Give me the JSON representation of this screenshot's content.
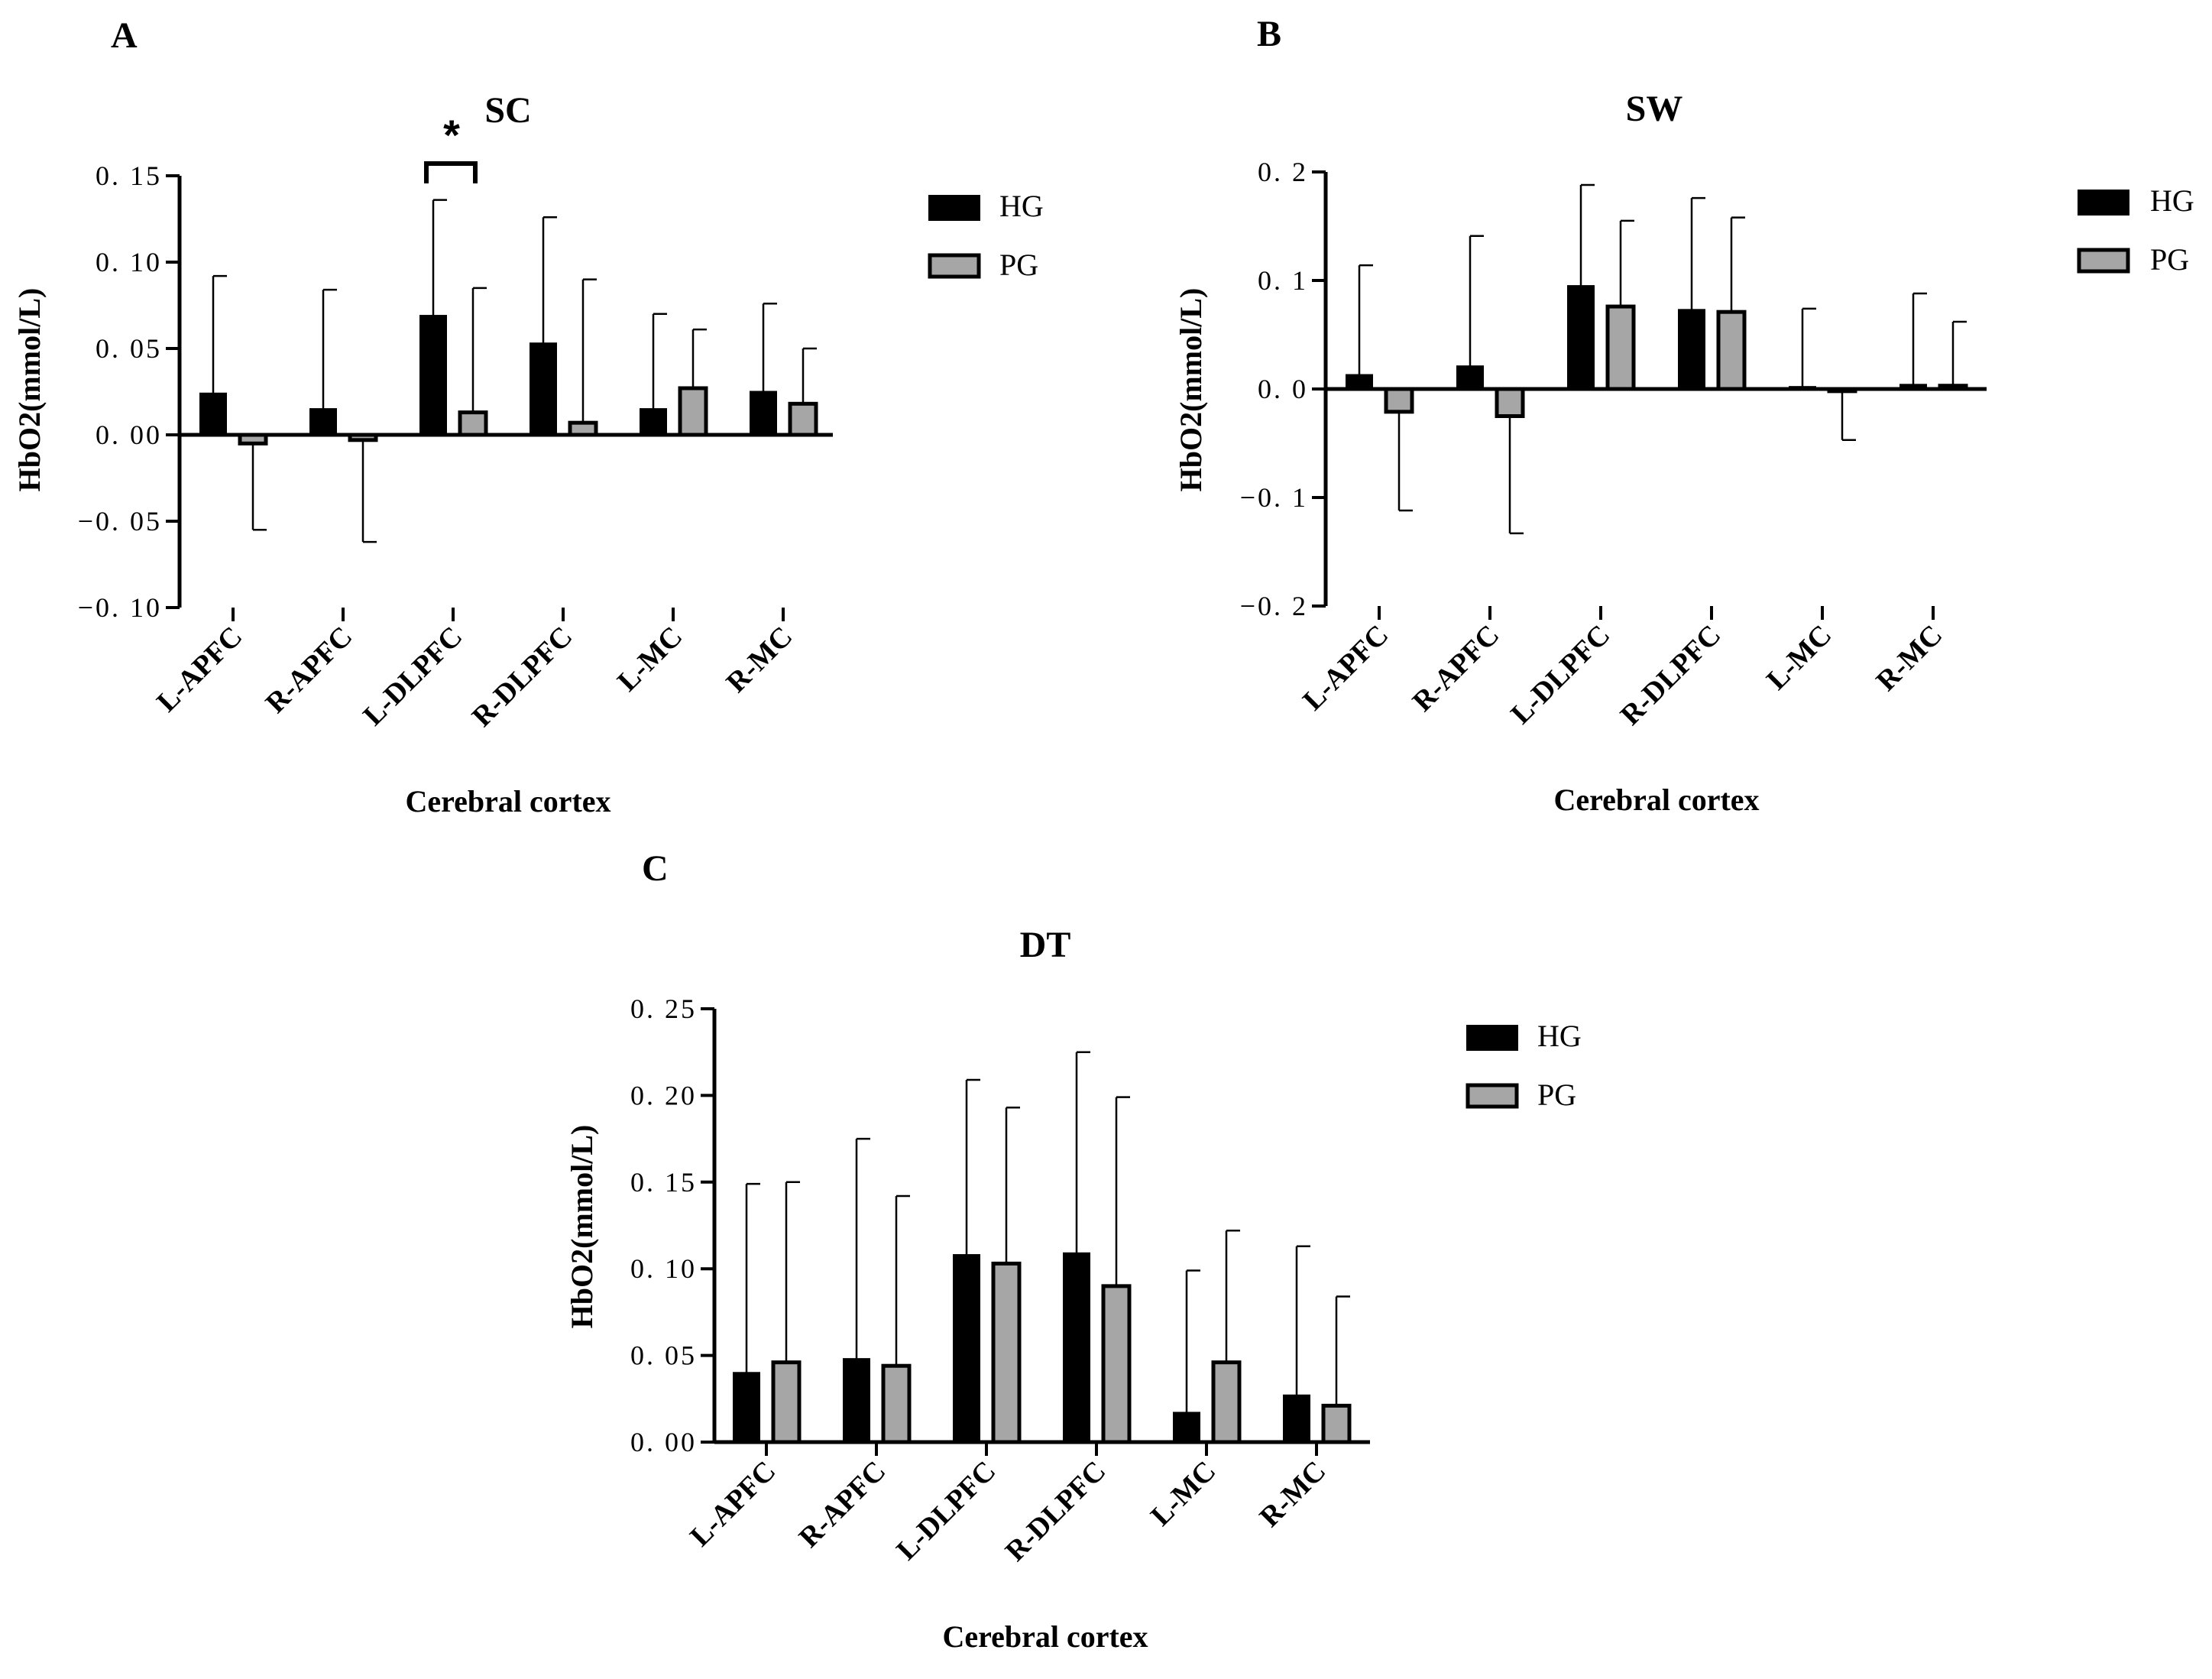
{
  "colors": {
    "hg": "#000000",
    "pg": "#a6a6a6",
    "axis": "#000000"
  },
  "chart_data": [
    {
      "panel": "A",
      "type": "bar",
      "title": "SC",
      "xlabel": "Cerebral cortex",
      "ylabel": "HbO2(mmol/L)",
      "ylim": [
        -0.1,
        0.15
      ],
      "yticks": [
        "0. 15",
        "0. 10",
        "0. 05",
        "0. 00",
        "−0. 05",
        "−0. 10"
      ],
      "categories": [
        "L-APFC",
        "R-APFC",
        "L-DLPFC",
        "R-DLPFC",
        "L-MC",
        "R-MC"
      ],
      "series": [
        {
          "name": "HG",
          "values": [
            0.024,
            0.015,
            0.069,
            0.053,
            0.015,
            0.025
          ],
          "errors": [
            0.068,
            0.069,
            0.067,
            0.073,
            0.055,
            0.051
          ]
        },
        {
          "name": "PG",
          "values": [
            -0.005,
            -0.003,
            0.013,
            0.007,
            0.027,
            0.018
          ],
          "errors": [
            0.05,
            0.059,
            0.072,
            0.083,
            0.034,
            0.032
          ]
        }
      ],
      "legend": [
        "HG",
        "PG"
      ],
      "annotation": "*"
    },
    {
      "panel": "B",
      "type": "bar",
      "title": "SW",
      "xlabel": "Cerebral cortex",
      "ylabel": "HbO2(mmol/L)",
      "ylim": [
        -0.2,
        0.2
      ],
      "yticks": [
        "0. 2",
        "0. 1",
        "0. 0",
        "−0. 1",
        "−0. 2"
      ],
      "categories": [
        "L-APFC",
        "R-APFC",
        "L-DLPFC",
        "R-DLPFC",
        "L-MC",
        "R-MC"
      ],
      "series": [
        {
          "name": "HG",
          "values": [
            0.013,
            0.021,
            0.095,
            0.073,
            0.002,
            0.004
          ],
          "errors": [
            0.101,
            0.12,
            0.093,
            0.103,
            0.072,
            0.084
          ]
        },
        {
          "name": "PG",
          "values": [
            -0.021,
            -0.025,
            0.076,
            0.071,
            -0.002,
            0.003
          ],
          "errors": [
            0.091,
            0.108,
            0.079,
            0.087,
            0.045,
            0.059
          ]
        }
      ],
      "legend": [
        "HG",
        "PG"
      ]
    },
    {
      "panel": "C",
      "type": "bar",
      "title": "DT",
      "xlabel": "Cerebral cortex",
      "ylabel": "HbO2(mmol/L)",
      "ylim": [
        0.0,
        0.25
      ],
      "yticks": [
        "0. 25",
        "0. 20",
        "0. 15",
        "0. 10",
        "0. 05",
        "0. 00"
      ],
      "categories": [
        "L-APFC",
        "R-APFC",
        "L-DLPFC",
        "R-DLPFC",
        "L-MC",
        "R-MC"
      ],
      "series": [
        {
          "name": "HG",
          "values": [
            0.04,
            0.048,
            0.108,
            0.109,
            0.017,
            0.027
          ],
          "errors": [
            0.109,
            0.127,
            0.101,
            0.116,
            0.082,
            0.086
          ]
        },
        {
          "name": "PG",
          "values": [
            0.046,
            0.044,
            0.103,
            0.09,
            0.046,
            0.021
          ],
          "errors": [
            0.104,
            0.098,
            0.09,
            0.109,
            0.076,
            0.063
          ]
        }
      ],
      "legend": [
        "HG",
        "PG"
      ]
    }
  ]
}
